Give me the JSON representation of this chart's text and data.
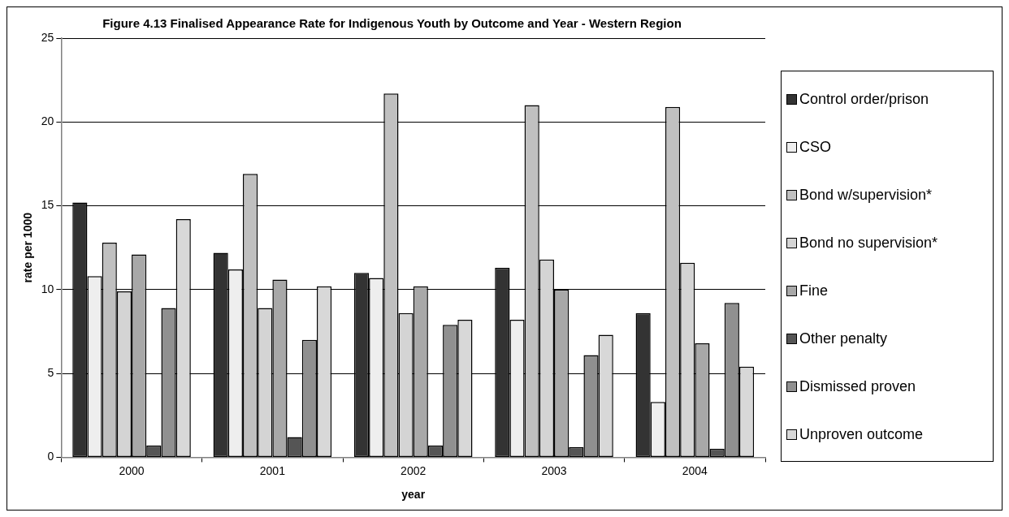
{
  "chart_data": {
    "type": "bar",
    "title": "Figure 4.13 Finalised Appearance Rate for Indigenous Youth by Outcome and Year - Western Region",
    "xlabel": "year",
    "ylabel": "rate per 1000",
    "categories": [
      "2000",
      "2001",
      "2002",
      "2003",
      "2004"
    ],
    "series": [
      {
        "name": "Control order/prison",
        "color": "#333333",
        "values": [
          15.2,
          12.2,
          11.0,
          11.3,
          8.6
        ]
      },
      {
        "name": "CSO",
        "color": "#eeeeee",
        "values": [
          10.8,
          11.2,
          10.7,
          8.2,
          3.3
        ]
      },
      {
        "name": "Bond w/supervision*",
        "color": "#c0c0c0",
        "values": [
          12.8,
          16.9,
          21.7,
          21.0,
          20.9
        ]
      },
      {
        "name": "Bond no supervision*",
        "color": "#d4d4d4",
        "values": [
          9.9,
          8.9,
          8.6,
          11.8,
          11.6
        ]
      },
      {
        "name": "Fine",
        "color": "#a8a8a8",
        "values": [
          12.1,
          10.6,
          10.2,
          10.0,
          6.8
        ]
      },
      {
        "name": "Other penalty",
        "color": "#555555",
        "values": [
          0.7,
          1.2,
          0.7,
          0.6,
          0.5
        ]
      },
      {
        "name": "Dismissed proven",
        "color": "#909090",
        "values": [
          8.9,
          7.0,
          7.9,
          6.1,
          9.2
        ]
      },
      {
        "name": "Unproven outcome",
        "color": "#d8d8d8",
        "values": [
          14.2,
          10.2,
          8.2,
          7.3,
          5.4
        ]
      }
    ],
    "ylim": [
      0,
      25
    ],
    "yticks": [
      0,
      5,
      10,
      15,
      20,
      25
    ],
    "grid": "y",
    "legend": "right"
  }
}
